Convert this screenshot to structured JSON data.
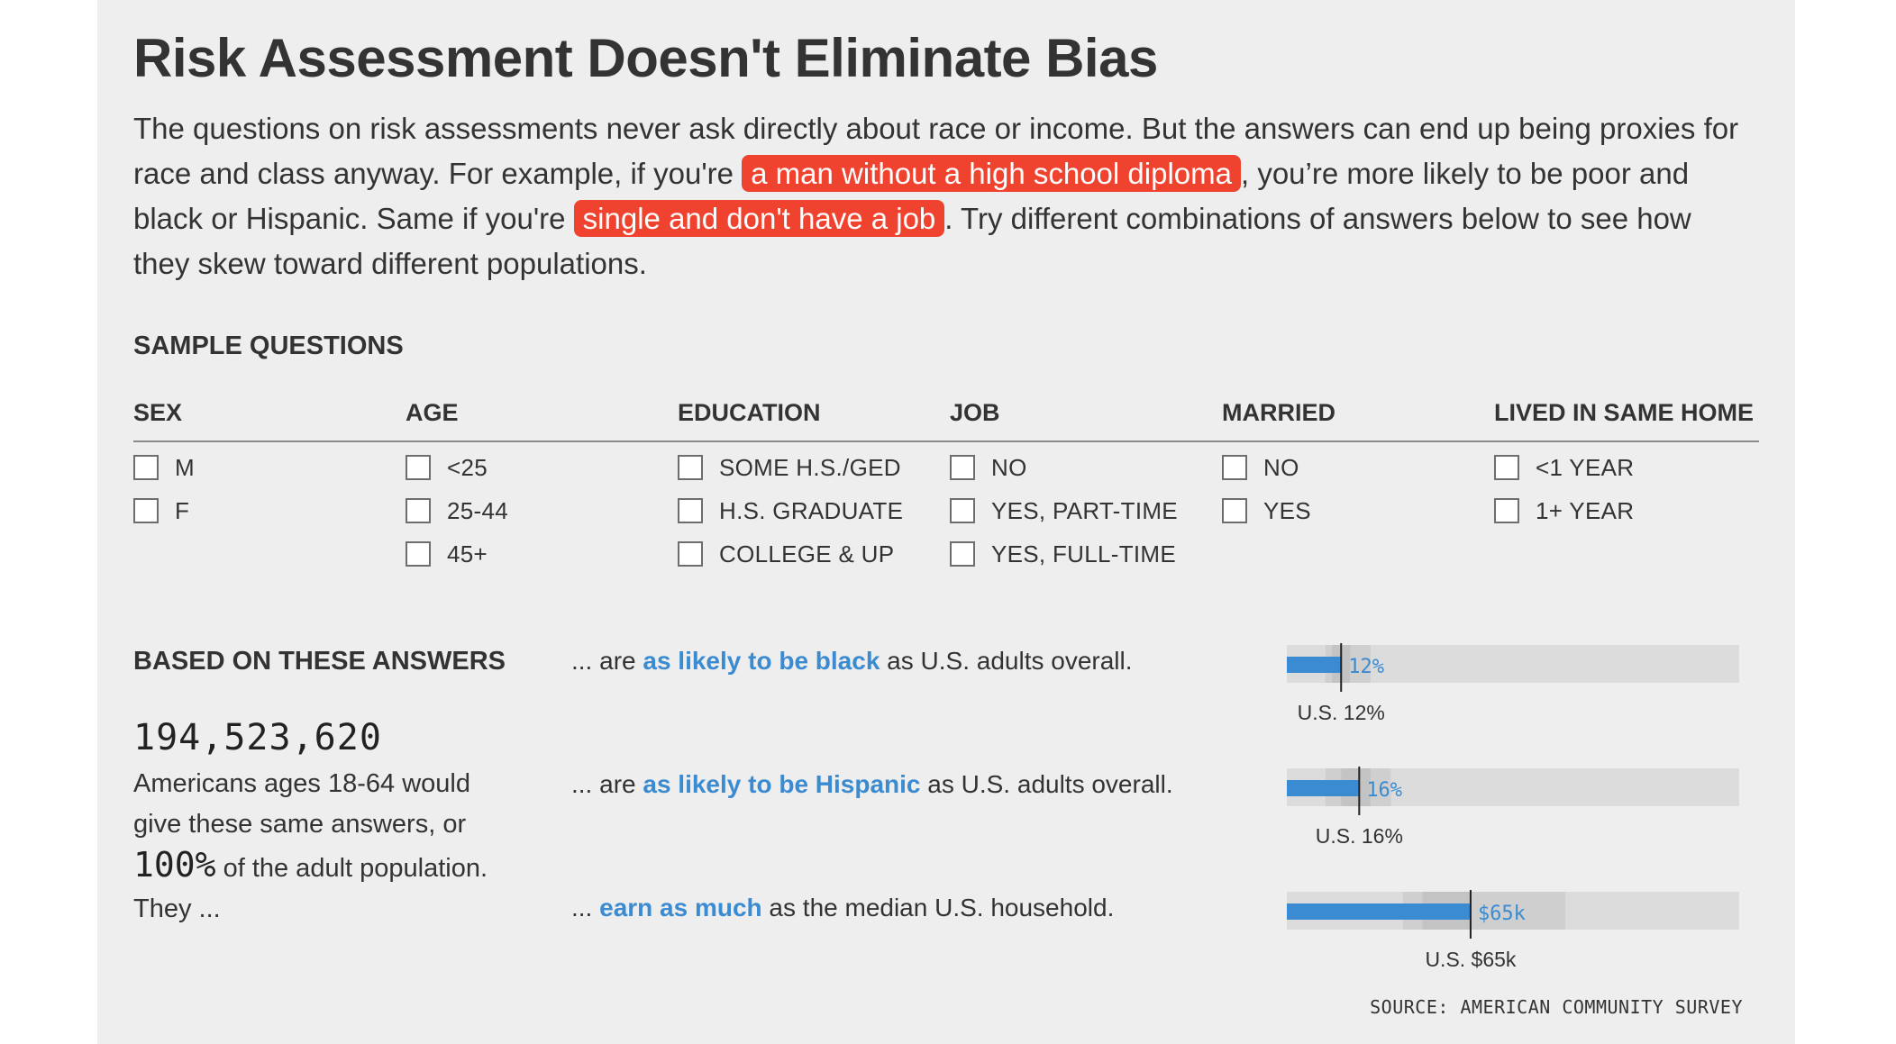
{
  "title": "Risk Assessment Doesn't Eliminate Bias",
  "intro": {
    "part1": "The questions on risk assessments never ask directly about race or income. But the answers can end up being proxies for race and class anyway. For example, if you're ",
    "highlight1": "a man without a high school diploma",
    "part2": ", you’re more likely to be poor and black or Hispanic. Same if you're ",
    "highlight2": "single and don't have a job",
    "part3": ". Try different combinations of answers below to see how they skew toward different populations."
  },
  "sample_questions": {
    "heading": "SAMPLE QUESTIONS",
    "columns": [
      {
        "header": "SEX",
        "options": [
          "M",
          "F"
        ]
      },
      {
        "header": "AGE",
        "options": [
          "<25",
          "25-44",
          "45+"
        ]
      },
      {
        "header": "EDUCATION",
        "options": [
          "SOME H.S./GED",
          "H.S. GRADUATE",
          "COLLEGE & UP"
        ]
      },
      {
        "header": "JOB",
        "options": [
          "NO",
          "YES, PART-TIME",
          "YES, FULL-TIME"
        ]
      },
      {
        "header": "MARRIED",
        "options": [
          "NO",
          "YES"
        ]
      },
      {
        "header": "LIVED IN SAME HOME",
        "options": [
          "<1 YEAR",
          "1+ YEAR"
        ]
      }
    ]
  },
  "results": {
    "heading": "BASED ON THESE ANSWERS",
    "count": "194,523,620",
    "desc_before": "Americans ages 18-64 would give these same answers, or ",
    "percent": "100%",
    "desc_after": " of the adult population. They ..."
  },
  "statements": [
    {
      "prefix": "... are ",
      "emphasis": "as likely to be black",
      "suffix": " as U.S. adults overall."
    },
    {
      "prefix": "... are ",
      "emphasis": "as likely to be Hispanic",
      "suffix": " as U.S. adults overall."
    },
    {
      "prefix": "... ",
      "emphasis": "earn as much",
      "suffix": " as the median U.S. household."
    }
  ],
  "colors": {
    "highlight": "#f0432f",
    "bar": "#3a8bd1",
    "track": "#dcdcdc",
    "range_outer": "#cfcfcf",
    "range_inner": "#c3c3c3",
    "marker": "#222222"
  },
  "chart_data": {
    "type": "bar",
    "orientation": "horizontal",
    "series": [
      {
        "value": 12,
        "value_label": "12%",
        "reference": 12,
        "reference_label": "U.S. 12%",
        "range_outer": [
          8.5,
          18.5
        ],
        "range_inner": [
          10,
          14
        ],
        "axis_max": 100
      },
      {
        "value": 16,
        "value_label": "16%",
        "reference": 16,
        "reference_label": "U.S. 16%",
        "range_outer": [
          8.5,
          23
        ],
        "range_inner": [
          12,
          18.5
        ],
        "axis_max": 100
      },
      {
        "value": 65,
        "value_label": "$65k",
        "reference": 65,
        "reference_label": "U.S. $65k",
        "range_outer": [
          41,
          98.5
        ],
        "range_inner": [
          48,
          65
        ],
        "axis_max": 160
      }
    ]
  },
  "source": "SOURCE: AMERICAN COMMUNITY SURVEY"
}
